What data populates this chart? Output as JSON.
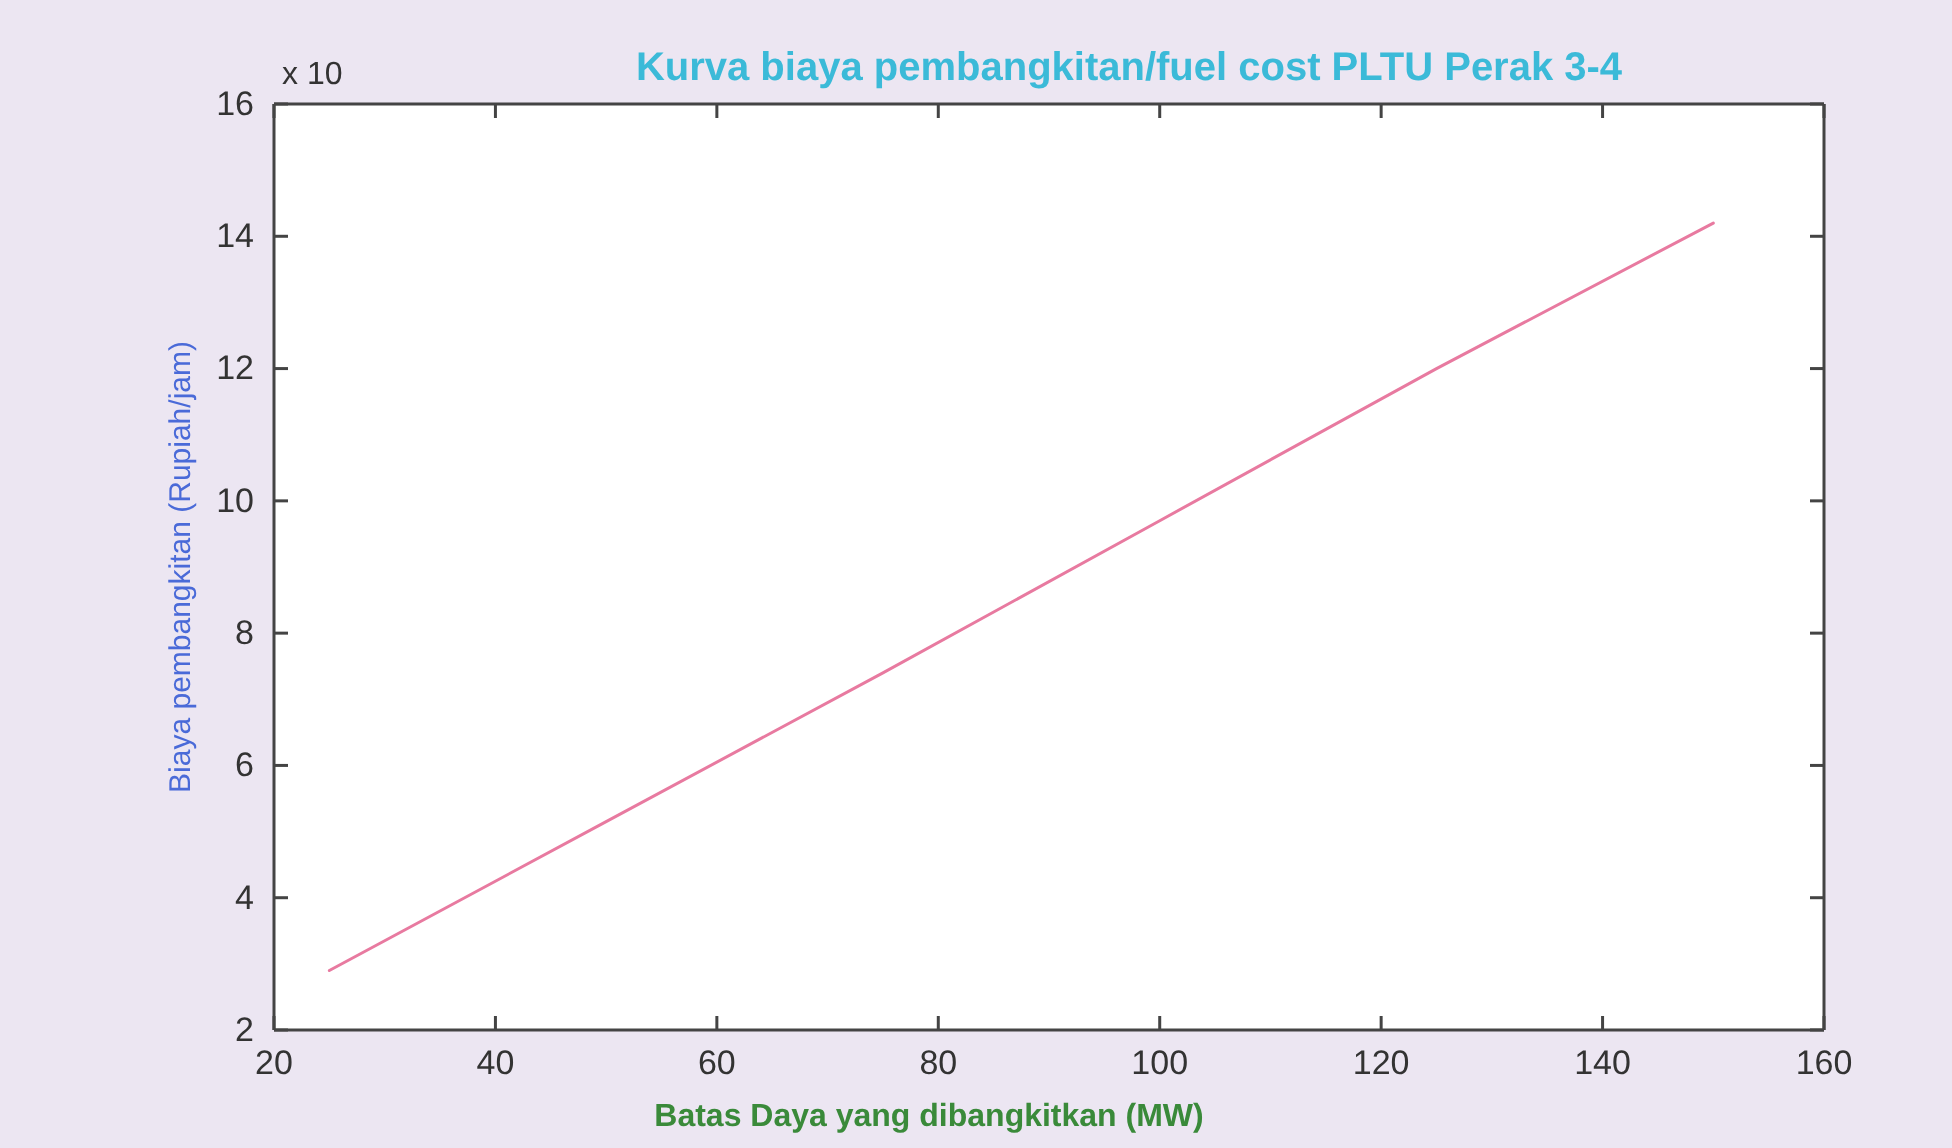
{
  "chart_data": {
    "type": "line",
    "title": "Kurva biaya pembangkitan/fuel cost PLTU Perak 3-4",
    "xlabel": "Batas Daya yang dibangkitkan (MW)",
    "ylabel": "Biaya pembangkitan (Rupiah/jam)",
    "annotations": [
      "x 10"
    ],
    "x": [
      25,
      50,
      75,
      100,
      125,
      150
    ],
    "series": [
      {
        "color": "#e87aa0",
        "values": [
          2.9,
          5.15,
          7.4,
          9.7,
          12.0,
          14.2
        ]
      }
    ],
    "xlim": [
      20,
      160
    ],
    "xticks": [
      20,
      40,
      60,
      80,
      100,
      120,
      140,
      160
    ],
    "ylim": [
      2,
      16
    ],
    "yticks": [
      2,
      4,
      6,
      8,
      10,
      12,
      14,
      16
    ],
    "grid": false,
    "line_style": "solid",
    "marker": "none"
  }
}
